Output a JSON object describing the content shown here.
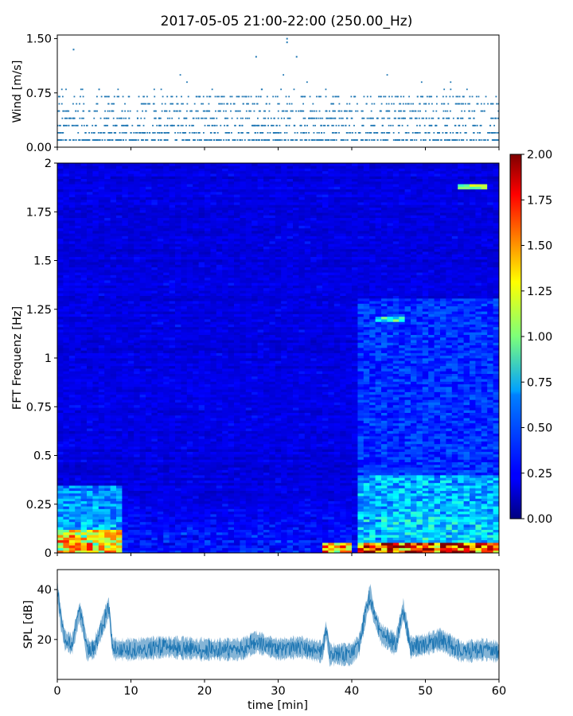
{
  "figure": {
    "title": "2017-05-05 21:00-22:00 (250.00_Hz)"
  },
  "chart_data": [
    {
      "type": "scatter",
      "panel": "wind",
      "ylabel": "Wind [m/s]",
      "xlim": [
        0,
        60
      ],
      "ylim": [
        0,
        1.55
      ],
      "yticks": [
        "0.00",
        "0.75",
        "1.50"
      ],
      "yticks_values": [
        0,
        0.75,
        1.5
      ],
      "point_color": "#1f77b4",
      "y_levels_ms": [
        0.1,
        0.2,
        0.3,
        0.4,
        0.5,
        0.6,
        0.7,
        0.8,
        0.9,
        1.0,
        1.1,
        1.2,
        1.3,
        1.4,
        1.5
      ],
      "notable_points": [
        {
          "x": 2.2,
          "y": 1.35
        },
        {
          "x": 27,
          "y": 1.25
        },
        {
          "x": 31.2,
          "y": 1.5
        },
        {
          "x": 31.2,
          "y": 1.45
        },
        {
          "x": 32.5,
          "y": 1.25
        }
      ]
    },
    {
      "type": "heatmap",
      "panel": "spectrogram",
      "ylabel": "FFT Frequenz [Hz]",
      "xlim": [
        0,
        60
      ],
      "ylim": [
        0,
        2
      ],
      "yticks": [
        "0",
        "0.25",
        "0.5",
        "0.75",
        "1",
        "1.25",
        "1.5",
        "1.75",
        "2"
      ],
      "yticks_values": [
        0,
        0.25,
        0.5,
        0.75,
        1,
        1.25,
        1.5,
        1.75,
        2
      ],
      "colormap": "jet",
      "colorbar": {
        "min": 0,
        "max": 2,
        "ticks": [
          "0.00",
          "0.25",
          "0.50",
          "0.75",
          "1.00",
          "1.25",
          "1.50",
          "1.75",
          "2.00"
        ],
        "ticks_values": [
          0,
          0.25,
          0.5,
          0.75,
          1,
          1.25,
          1.5,
          1.75,
          2
        ]
      },
      "background_level": 0.18,
      "features": [
        {
          "x_range": [
            0,
            8.5
          ],
          "f_range": [
            0,
            0.12
          ],
          "level": 1.4
        },
        {
          "x_range": [
            0,
            8.5
          ],
          "f_range": [
            0.12,
            0.35
          ],
          "level": 0.6
        },
        {
          "x_range": [
            36,
            40
          ],
          "f_range": [
            0,
            0.05
          ],
          "level": 1.5
        },
        {
          "x_range": [
            41,
            60
          ],
          "f_range": [
            0,
            0.05
          ],
          "level": 1.8
        },
        {
          "x_range": [
            41,
            60
          ],
          "f_range": [
            0.05,
            0.4
          ],
          "level": 0.7
        },
        {
          "x_range": [
            41,
            60
          ],
          "f_range": [
            0.4,
            1.3
          ],
          "level": 0.4
        },
        {
          "x_range": [
            43.5,
            47
          ],
          "f_range": [
            1.19,
            1.21
          ],
          "level": 1.0
        },
        {
          "x_range": [
            54.5,
            58.5
          ],
          "f_range": [
            1.87,
            1.89
          ],
          "level": 1.1
        }
      ]
    },
    {
      "type": "line",
      "panel": "spl",
      "ylabel": "SPL [dB]",
      "xlabel": "time [min]",
      "xlim": [
        0,
        60
      ],
      "ylim": [
        4,
        48
      ],
      "xticks": [
        "0",
        "10",
        "20",
        "30",
        "40",
        "50",
        "60"
      ],
      "xticks_values": [
        0,
        10,
        20,
        30,
        40,
        50,
        60
      ],
      "yticks": [
        "20",
        "40"
      ],
      "yticks_values": [
        20,
        40
      ],
      "line_color": "#1f77b4",
      "approx_series": {
        "x": [
          0,
          0.5,
          1,
          2,
          3,
          3.5,
          4,
          5,
          7,
          7.5,
          8,
          10,
          15,
          20,
          25,
          27,
          30,
          33,
          36,
          36.5,
          37,
          40,
          41,
          42,
          42.5,
          43,
          44,
          46,
          47,
          48,
          50,
          52,
          55,
          58,
          60
        ],
        "y": [
          40,
          28,
          20,
          18,
          31,
          26,
          16,
          16,
          33,
          17,
          16,
          16,
          17,
          16,
          16,
          19,
          16,
          17,
          15,
          24,
          14,
          14,
          18,
          32,
          38,
          30,
          22,
          18,
          32,
          17,
          18,
          20,
          15,
          16,
          15
        ]
      }
    }
  ]
}
